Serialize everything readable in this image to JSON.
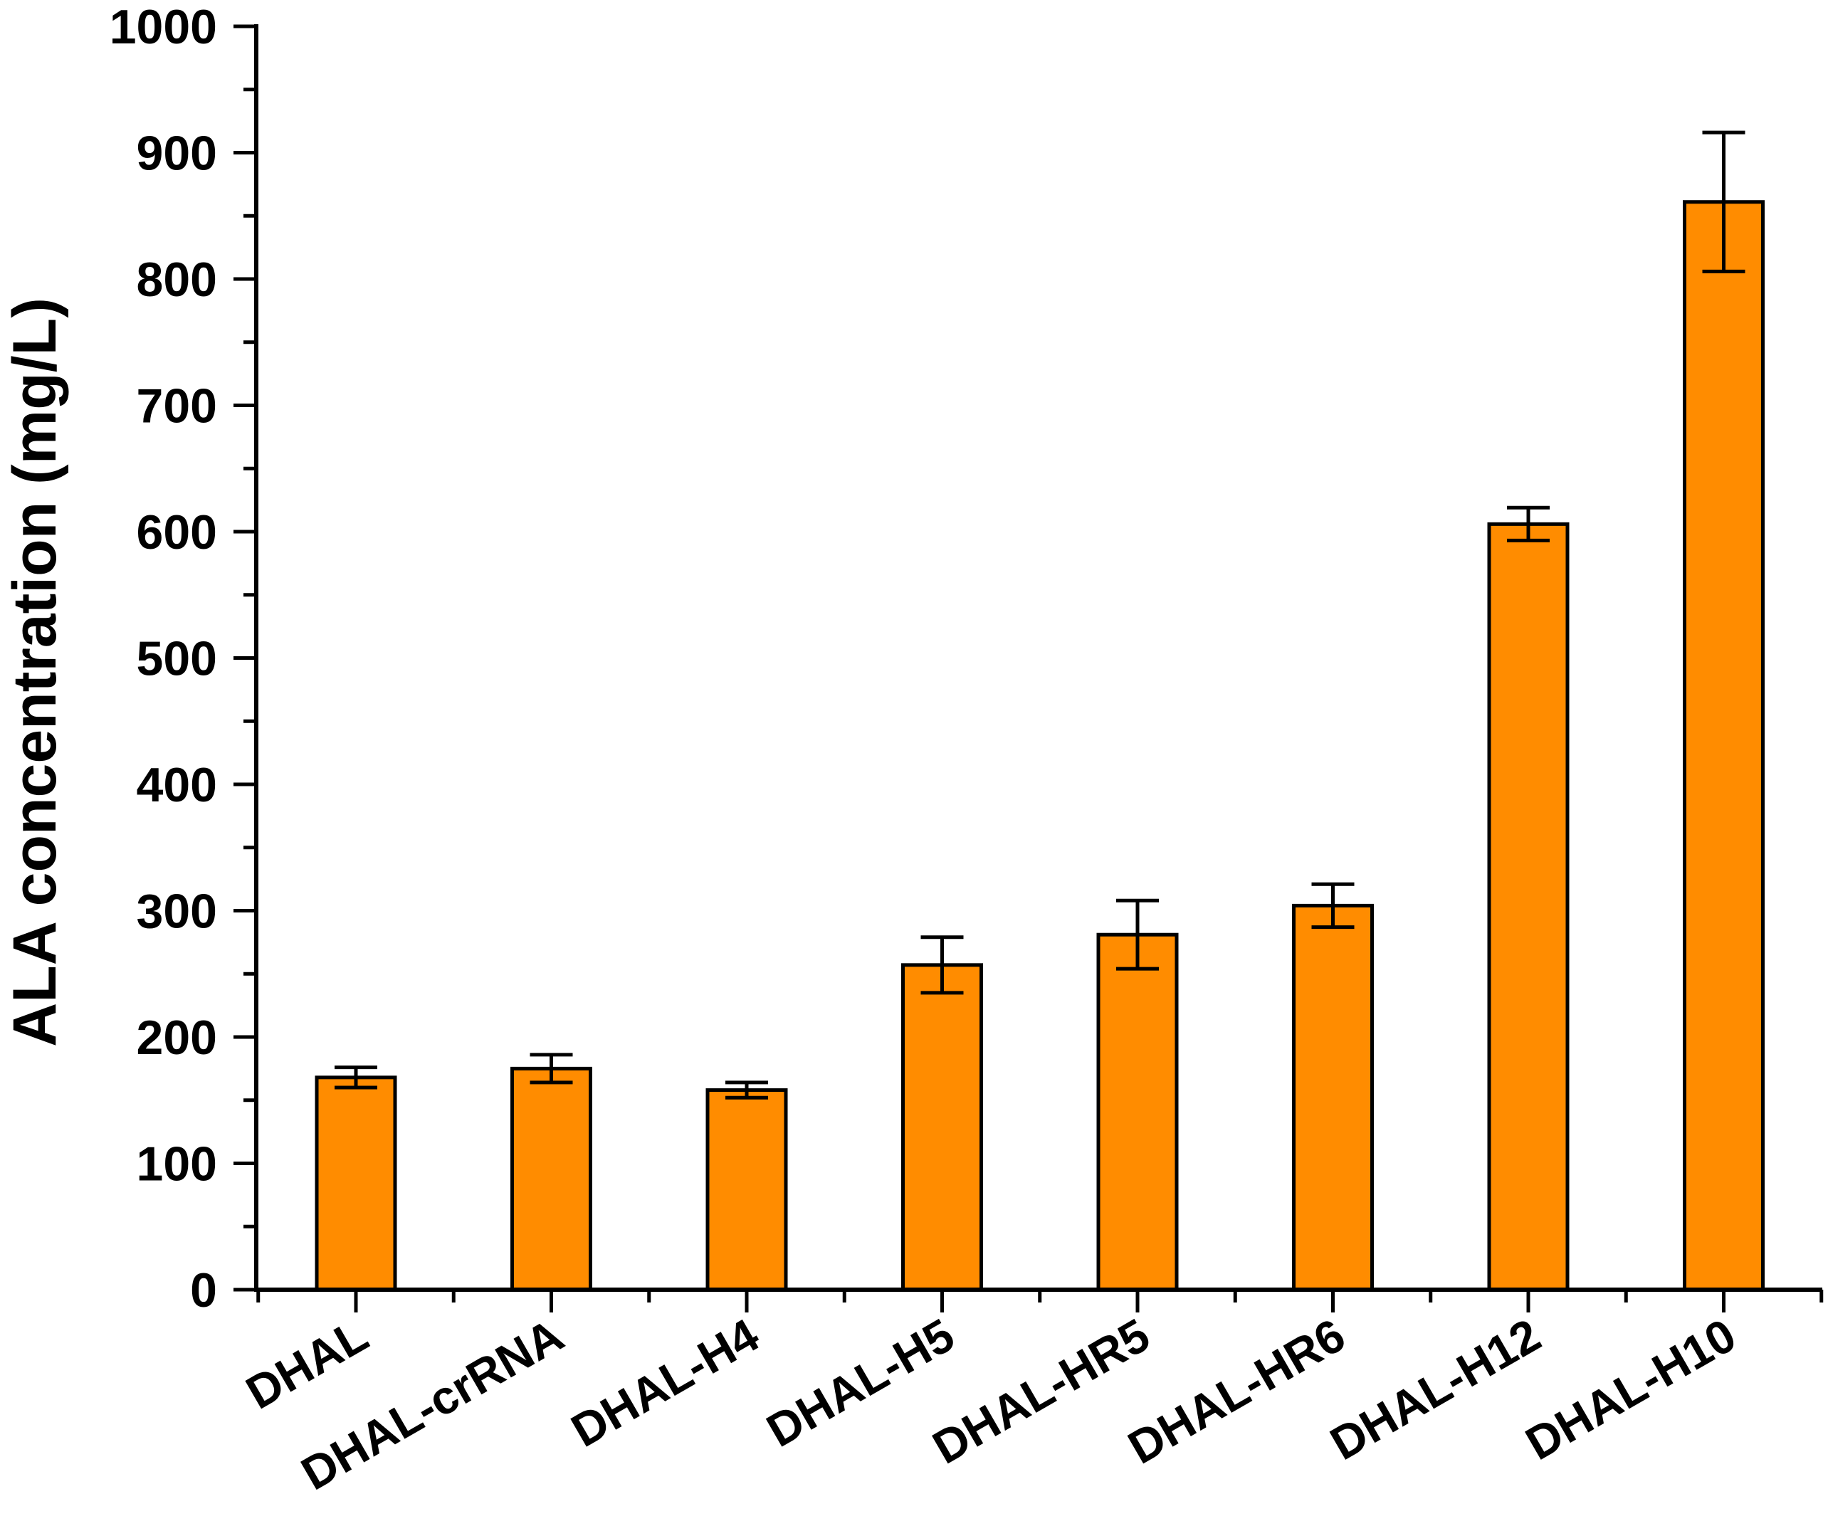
{
  "chart_data": {
    "type": "bar",
    "title": "",
    "xlabel": "",
    "ylabel": "ALA concentration (mg/L)",
    "ylim": [
      0,
      1000
    ],
    "yticks": [
      0,
      100,
      200,
      300,
      400,
      500,
      600,
      700,
      800,
      900,
      1000
    ],
    "grid": false,
    "legend": "none",
    "bar_color": "#ff8c00",
    "categories": [
      "DHAL",
      "DHAL-crRNA",
      "DHAL-H4",
      "DHAL-H5",
      "DHAL-HR5",
      "DHAL-HR6",
      "DHAL-H12",
      "DHAL-H10"
    ],
    "values": [
      168,
      175,
      158,
      257,
      281,
      304,
      606,
      861
    ],
    "errors": [
      8,
      11,
      6,
      22,
      27,
      17,
      13,
      55
    ]
  }
}
